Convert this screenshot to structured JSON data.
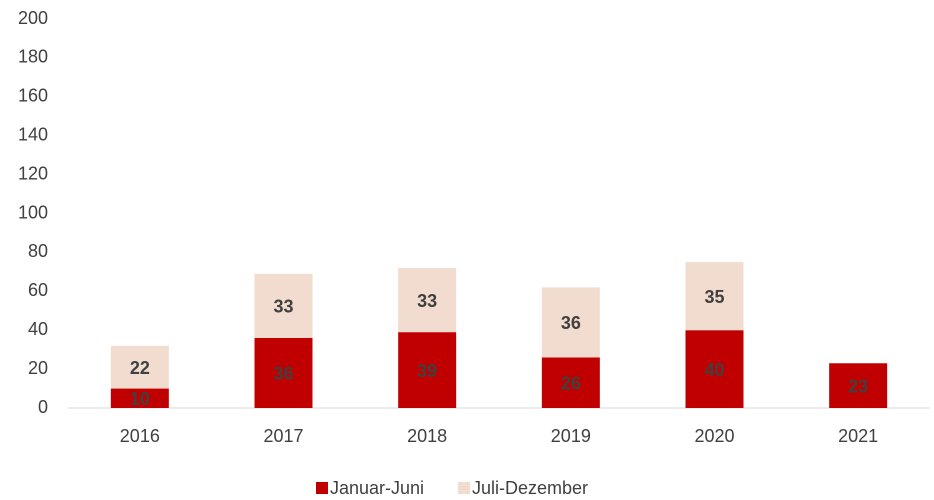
{
  "chart_data": {
    "type": "bar",
    "stacked": true,
    "categories": [
      "2016",
      "2017",
      "2018",
      "2019",
      "2020",
      "2021"
    ],
    "series": [
      {
        "name": "Januar-Juni",
        "color": "#c00000",
        "values": [
          10,
          36,
          39,
          26,
          40,
          23
        ]
      },
      {
        "name": "Juli-Dezember",
        "color": "#f2dcd0",
        "values": [
          22,
          33,
          33,
          36,
          35,
          null
        ]
      }
    ],
    "ylim": [
      0,
      200
    ],
    "yticks": [
      0,
      20,
      40,
      60,
      80,
      100,
      120,
      140,
      160,
      180,
      200
    ],
    "grid": false,
    "legend": "bottom"
  }
}
